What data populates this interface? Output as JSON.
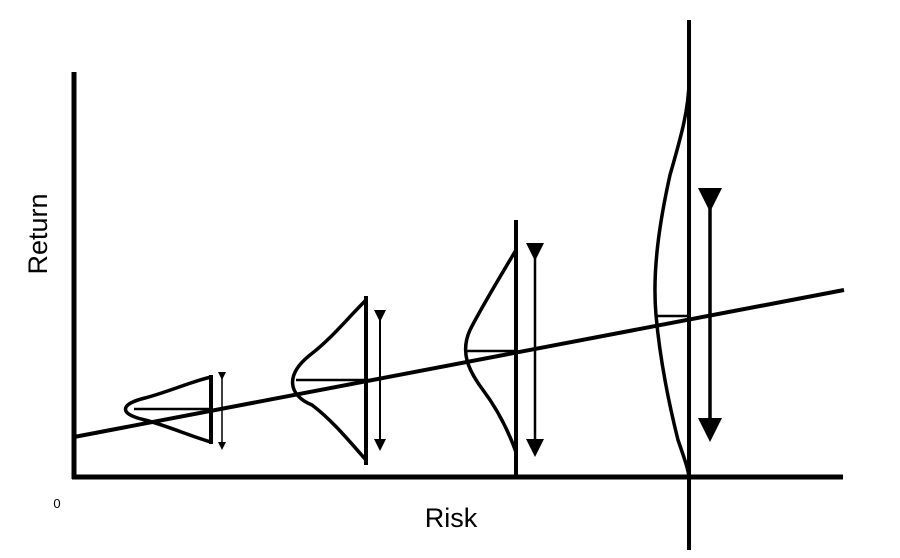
{
  "diagram": {
    "x_axis_label": "Risk",
    "y_axis_label": "Return",
    "origin_label": "0",
    "distribution_count": 4,
    "ink_color": "#000000",
    "background_color": "#ffffff"
  }
}
